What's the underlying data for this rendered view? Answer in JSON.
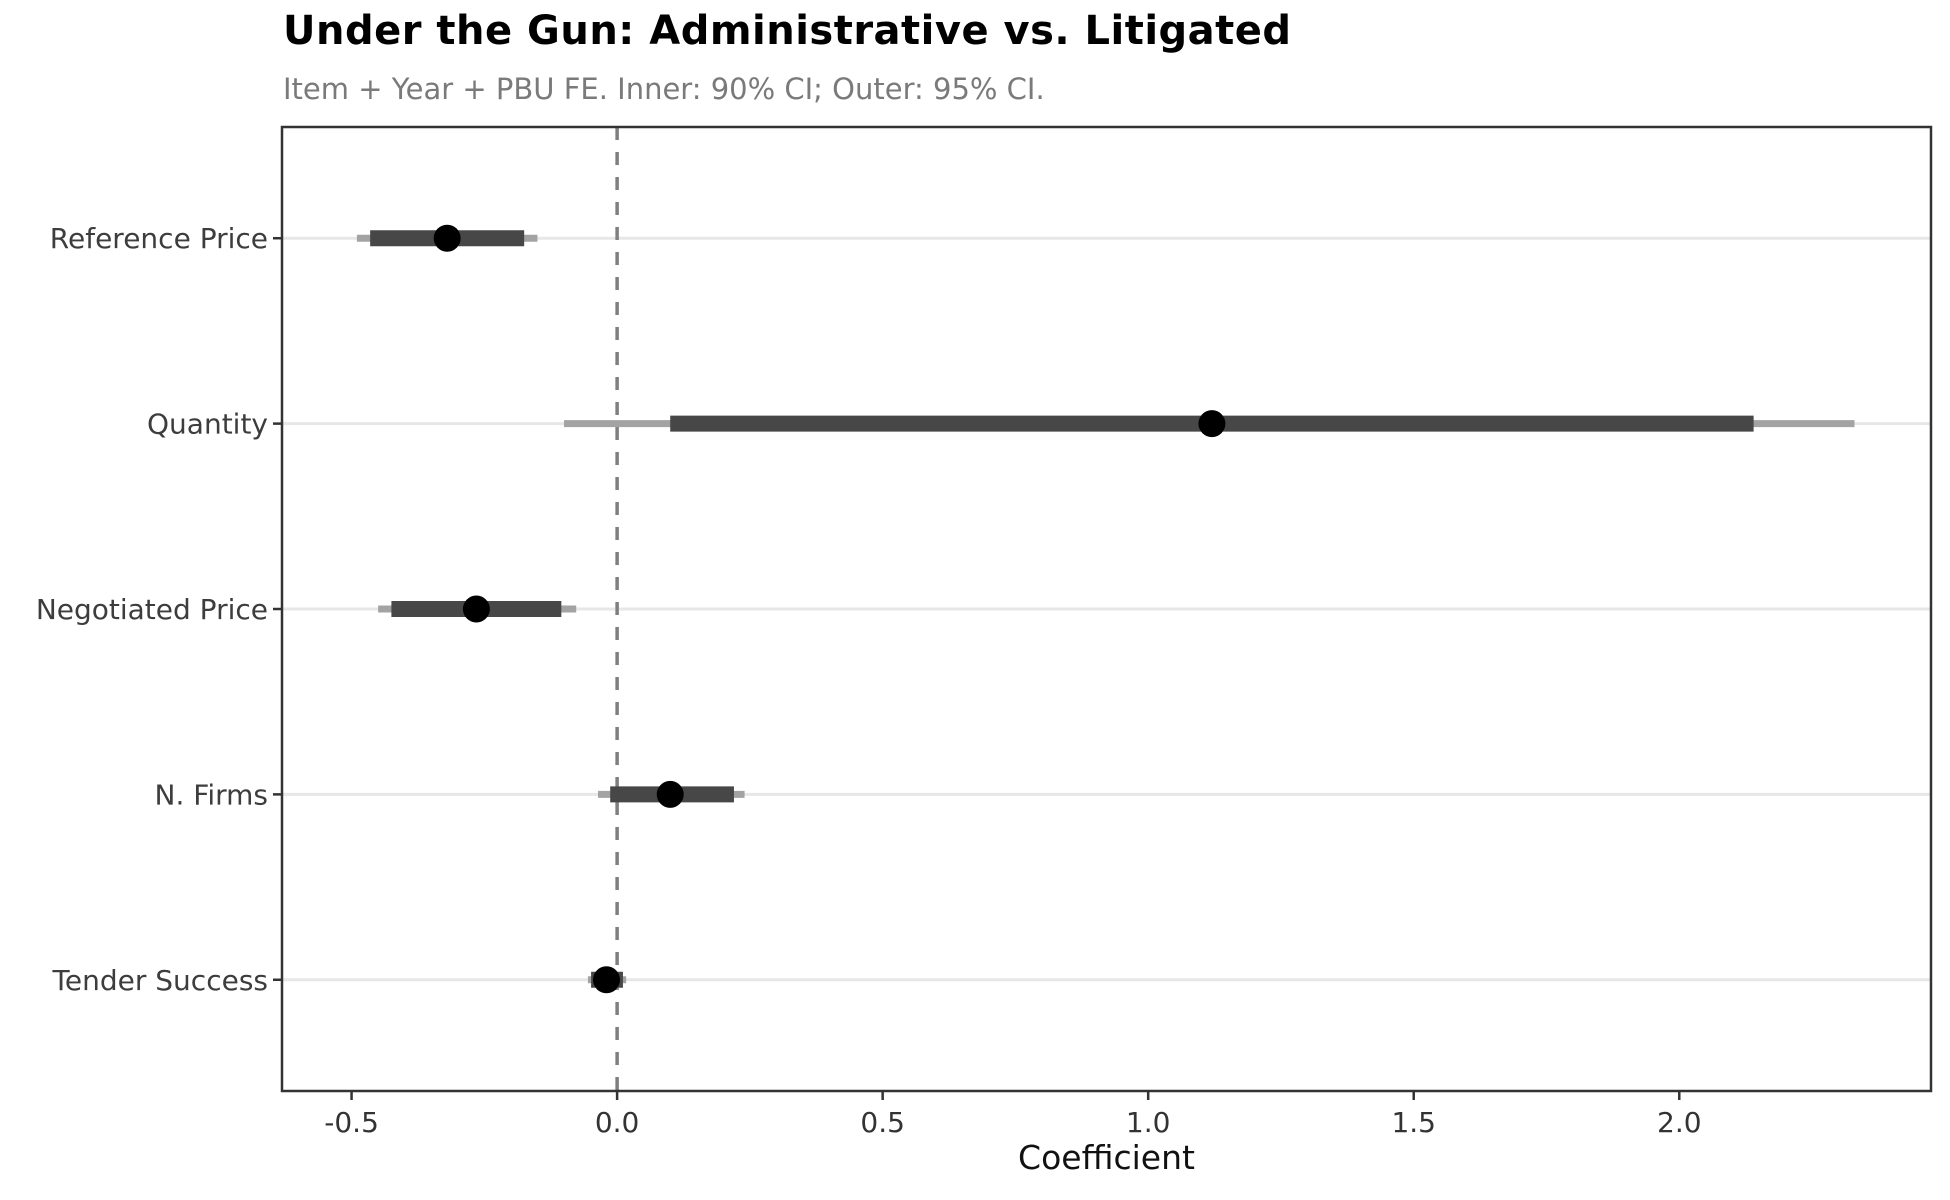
{
  "chart_data": {
    "type": "scatter",
    "variant": "coefficient-forest-plot",
    "title": "Under the Gun: Administrative vs. Litigated",
    "subtitle": "Item + Year + PBU FE. Inner: 90% CI; Outer: 95% CI.",
    "xlabel": "Coefficient",
    "ylabel": "",
    "categories": [
      "Reference Price",
      "Quantity",
      "Negotiated Price",
      "N. Firms",
      "Tender Success"
    ],
    "points": [
      {
        "label": "Reference Price",
        "estimate": -0.32,
        "ci90": [
          -0.465,
          -0.175
        ],
        "ci95": [
          -0.49,
          -0.15
        ]
      },
      {
        "label": "Quantity",
        "estimate": 1.12,
        "ci90": [
          0.1,
          2.14
        ],
        "ci95": [
          -0.1,
          2.33
        ]
      },
      {
        "label": "Negotiated Price",
        "estimate": -0.265,
        "ci90": [
          -0.425,
          -0.105
        ],
        "ci95": [
          -0.45,
          -0.077
        ]
      },
      {
        "label": "N. Firms",
        "estimate": 0.1,
        "ci90": [
          -0.013,
          0.22
        ],
        "ci95": [
          -0.036,
          0.24
        ]
      },
      {
        "label": "Tender Success",
        "estimate": -0.02,
        "ci90": [
          -0.049,
          0.011
        ],
        "ci95": [
          -0.055,
          0.017
        ]
      }
    ],
    "x_ticks": [
      -0.5,
      0.0,
      0.5,
      1.0,
      1.5,
      2.0
    ],
    "x_tick_labels": [
      "-0.5",
      "0.0",
      "0.5",
      "1.0",
      "1.5",
      "2.0"
    ],
    "xlim": [
      -0.631,
      2.474
    ],
    "reference_line_x": 0,
    "reference_line_style": "dashed",
    "inner_ci_level": "90%",
    "outer_ci_level": "95%",
    "grid": "horizontal-major-only",
    "legend": "none",
    "colors": {
      "point": "#000000",
      "inner_ci": "#474747",
      "outer_ci": "#a3a3a3",
      "gridline": "#e7e7e7",
      "reference_line": "#7f7f7f",
      "panel_border": "#333333",
      "axis_tick": "#333333",
      "category_label_text": "#3d3d3d",
      "tick_label_text": "#333333",
      "title_text": "#000000",
      "subtitle_text": "#7a7a7a",
      "axis_title_text": "#111111",
      "background": "#ffffff"
    }
  }
}
